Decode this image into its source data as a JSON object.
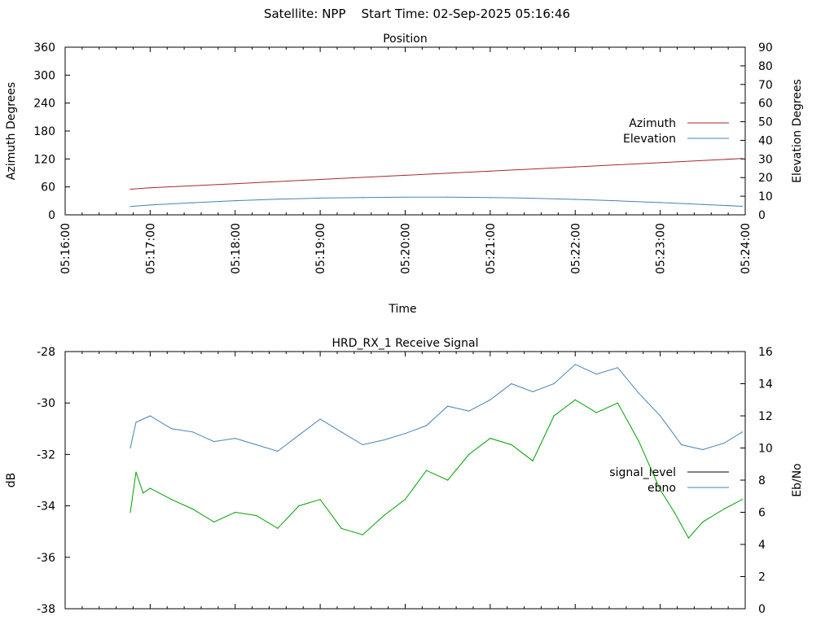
{
  "page": {
    "title": "Satellite: NPP    Start Time: 02-Sep-2025 05:16:46"
  },
  "chart_data": [
    {
      "type": "line",
      "title": "Position",
      "xlabel": "Time",
      "ylabel": "Azimuth Degrees",
      "y2label": "Elevation Degrees",
      "xlim": [
        "05:16:00",
        "05:24:00"
      ],
      "x_ticks": [
        "05:16:00",
        "05:17:00",
        "05:18:00",
        "05:19:00",
        "05:20:00",
        "05:21:00",
        "05:22:00",
        "05:23:00",
        "05:24:00"
      ],
      "ylim": [
        0,
        360
      ],
      "y_ticks": [
        0,
        60,
        120,
        180,
        240,
        300,
        360
      ],
      "y2lim": [
        0,
        90
      ],
      "y2_ticks": [
        0,
        10,
        20,
        30,
        40,
        50,
        60,
        70,
        80,
        90
      ],
      "legend_position": "right",
      "grid": false,
      "series": [
        {
          "name": "Azimuth",
          "axis": "left",
          "color": "#a52a2a",
          "x": [
            "05:16:46",
            "05:17:00",
            "05:18:00",
            "05:19:00",
            "05:20:00",
            "05:21:00",
            "05:22:00",
            "05:23:00",
            "05:23:58"
          ],
          "y": [
            55,
            58,
            67,
            76,
            85,
            94,
            103,
            112,
            121
          ]
        },
        {
          "name": "Elevation",
          "axis": "right",
          "color": "#4682b4",
          "x": [
            "05:16:46",
            "05:17:00",
            "05:17:30",
            "05:18:00",
            "05:18:30",
            "05:19:00",
            "05:19:30",
            "05:20:00",
            "05:20:30",
            "05:21:00",
            "05:21:30",
            "05:22:00",
            "05:22:30",
            "05:23:00",
            "05:23:30",
            "05:23:58"
          ],
          "y": [
            4.5,
            5.3,
            6.5,
            7.6,
            8.4,
            9.0,
            9.3,
            9.5,
            9.5,
            9.3,
            8.9,
            8.3,
            7.5,
            6.6,
            5.6,
            4.6
          ]
        }
      ]
    },
    {
      "type": "line",
      "title": "HRD_RX_1 Receive Signal",
      "ylabel": "dB",
      "y2label": "Eb/No",
      "ylim": [
        -38,
        -28
      ],
      "y_ticks": [
        -38,
        -36,
        -34,
        -32,
        -30,
        -28
      ],
      "y2lim": [
        0,
        16
      ],
      "y2_ticks": [
        0,
        2,
        4,
        6,
        8,
        10,
        12,
        14,
        16
      ],
      "xlim": [
        "05:16:00",
        "05:24:00"
      ],
      "legend_position": "right",
      "grid": false,
      "series": [
        {
          "name": "signal_level",
          "axis": "left",
          "color": "#000000",
          "x": [],
          "y": []
        },
        {
          "name": "ebno",
          "axis": "right",
          "color": "#4682b4",
          "x": [
            "05:16:46",
            "05:16:50",
            "05:17:00",
            "05:17:15",
            "05:17:30",
            "05:17:45",
            "05:18:00",
            "05:18:15",
            "05:18:30",
            "05:18:45",
            "05:19:00",
            "05:19:15",
            "05:19:30",
            "05:19:45",
            "05:20:00",
            "05:20:15",
            "05:20:30",
            "05:20:45",
            "05:21:00",
            "05:21:15",
            "05:21:30",
            "05:21:45",
            "05:22:00",
            "05:22:15",
            "05:22:30",
            "05:22:45",
            "05:23:00",
            "05:23:15",
            "05:23:30",
            "05:23:45",
            "05:23:58"
          ],
          "y": [
            10.0,
            11.6,
            12.0,
            11.2,
            11.0,
            10.4,
            10.6,
            10.2,
            9.8,
            10.8,
            11.8,
            11.0,
            10.2,
            10.5,
            10.9,
            11.4,
            12.6,
            12.3,
            13.0,
            14.0,
            13.5,
            14.0,
            15.2,
            14.6,
            15.0,
            13.4,
            12.0,
            10.2,
            9.9,
            10.3,
            11.0
          ]
        },
        {
          "name": "",
          "axis": "right",
          "color": "#00a000",
          "x": [
            "05:16:46",
            "05:16:50",
            "05:16:55",
            "05:17:00",
            "05:17:15",
            "05:17:30",
            "05:17:45",
            "05:18:00",
            "05:18:15",
            "05:18:30",
            "05:18:45",
            "05:19:00",
            "05:19:15",
            "05:19:30",
            "05:19:45",
            "05:20:00",
            "05:20:15",
            "05:20:30",
            "05:20:45",
            "05:21:00",
            "05:21:15",
            "05:21:30",
            "05:21:45",
            "05:22:00",
            "05:22:15",
            "05:22:30",
            "05:22:45",
            "05:23:00",
            "05:23:10",
            "05:23:20",
            "05:23:30",
            "05:23:45",
            "05:23:58"
          ],
          "y": [
            6.0,
            8.5,
            7.2,
            7.5,
            6.8,
            6.2,
            5.4,
            6.0,
            5.8,
            5.0,
            6.4,
            6.8,
            5.0,
            4.6,
            5.8,
            6.8,
            8.6,
            8.0,
            9.6,
            10.6,
            10.2,
            9.2,
            12.0,
            13.0,
            12.2,
            12.8,
            10.4,
            7.4,
            6.0,
            4.4,
            5.4,
            6.2,
            6.8
          ]
        }
      ]
    }
  ]
}
